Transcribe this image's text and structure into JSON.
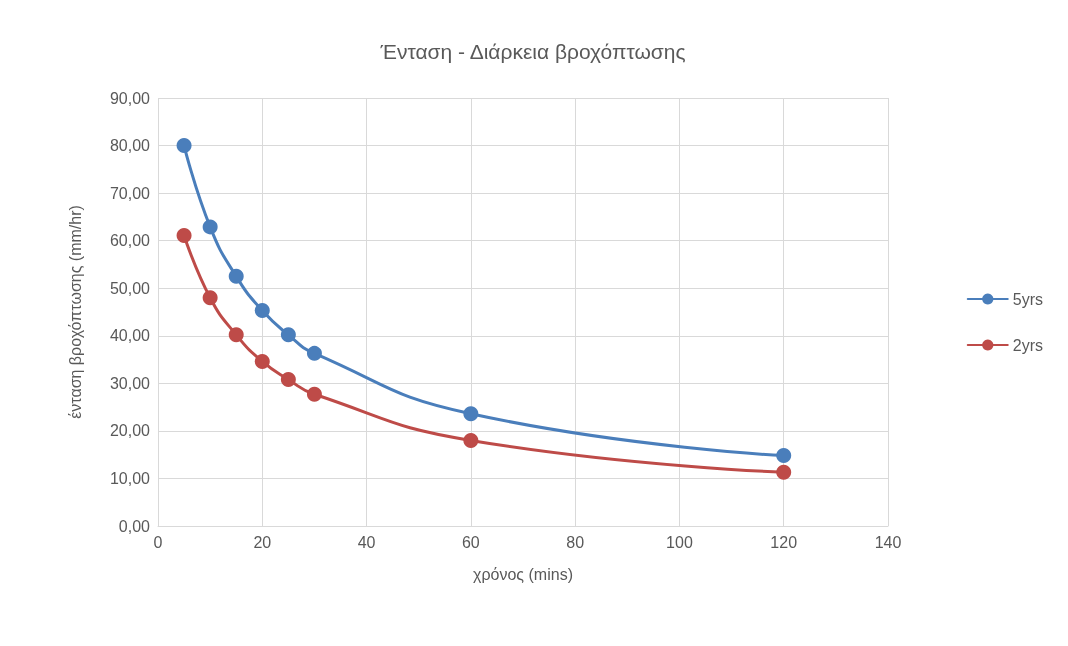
{
  "chart_data": {
    "type": "line",
    "title": "Ένταση - Διάρκεια βροχόπτωσης",
    "xlabel": "χρόνος (mins)",
    "ylabel": "ένταση βροχόπτωσης (mm/hr)",
    "x": [
      5,
      10,
      15,
      20,
      25,
      30,
      60,
      120
    ],
    "series": [
      {
        "name": "5yrs",
        "color": "#4a7ebb",
        "values": [
          80,
          62.9,
          52.5,
          45.3,
          40.2,
          36.3,
          23.6,
          14.8
        ]
      },
      {
        "name": "2yrs",
        "color": "#be4b48",
        "values": [
          61.1,
          48,
          40.2,
          34.6,
          30.8,
          27.7,
          18,
          11.3
        ]
      }
    ],
    "xlim": [
      0,
      140
    ],
    "xticks": [
      0,
      20,
      40,
      60,
      80,
      100,
      120,
      140
    ],
    "ylim": [
      0,
      90
    ],
    "yticks": [
      {
        "value": 0,
        "label": "0,00"
      },
      {
        "value": 10,
        "label": "10,00"
      },
      {
        "value": 20,
        "label": "20,00"
      },
      {
        "value": 30,
        "label": "30,00"
      },
      {
        "value": 40,
        "label": "40,00"
      },
      {
        "value": 50,
        "label": "50,00"
      },
      {
        "value": 60,
        "label": "60,00"
      },
      {
        "value": 70,
        "label": "70,00"
      },
      {
        "value": 80,
        "label": "80,00"
      },
      {
        "value": 90,
        "label": "90,00"
      }
    ],
    "grid": true,
    "legend": "right",
    "marker": "circle",
    "line_style": "solid"
  }
}
